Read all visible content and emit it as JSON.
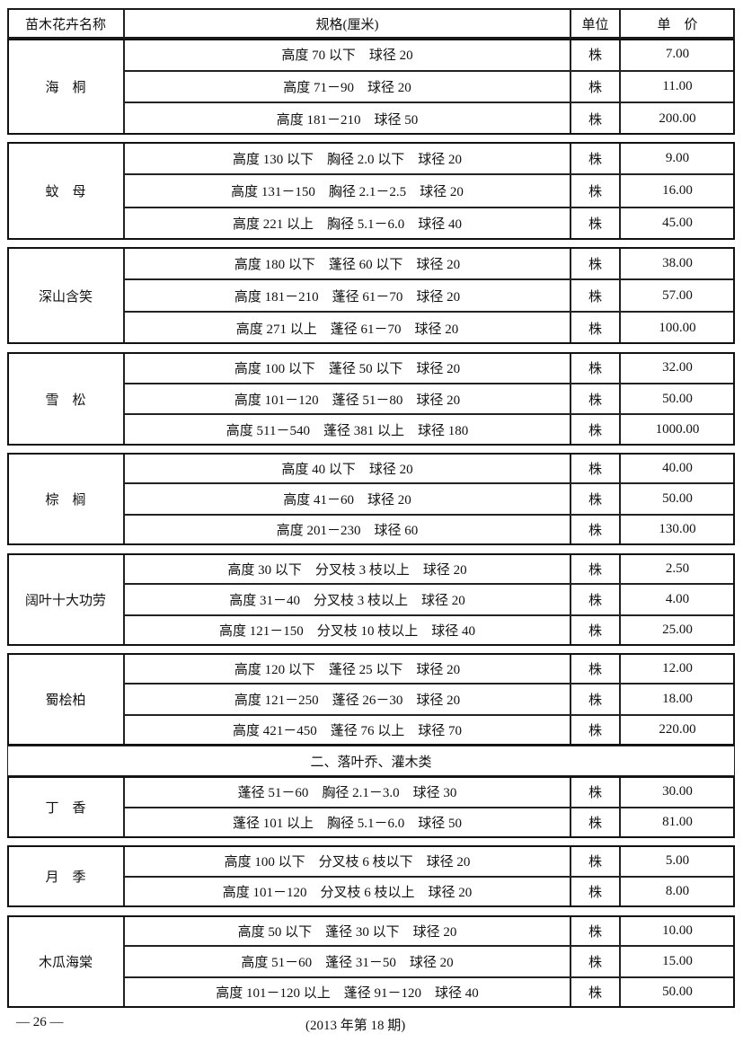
{
  "header": [
    "苗木花卉名称",
    "规格(厘米)",
    "单位",
    "单　价"
  ],
  "blocks": [
    {
      "name": "海　桐",
      "rows": [
        [
          "高度 70 以下　球径 20",
          "株",
          "7.00"
        ],
        [
          "高度 71－90　球径 20",
          "株",
          "11.00"
        ],
        [
          "高度 181－210　球径 50",
          "株",
          "200.00"
        ]
      ]
    },
    {
      "name": "蚊　母",
      "rows": [
        [
          "高度 130 以下　胸径 2.0 以下　球径 20",
          "株",
          "9.00"
        ],
        [
          "高度 131－150　胸径 2.1－2.5　球径 20",
          "株",
          "16.00"
        ],
        [
          "高度 221 以上　胸径 5.1－6.0　球径 40",
          "株",
          "45.00"
        ]
      ]
    },
    {
      "name": "深山含笑",
      "rows": [
        [
          "高度 180 以下　蓬径 60 以下　球径 20",
          "株",
          "38.00"
        ],
        [
          "高度 181－210　蓬径 61－70　球径 20",
          "株",
          "57.00"
        ],
        [
          "高度 271 以上　蓬径 61－70　球径 20",
          "株",
          "100.00"
        ]
      ]
    },
    {
      "name": "雪　松",
      "rows": [
        [
          "高度 100 以下　蓬径 50 以下　球径 20",
          "株",
          "32.00"
        ],
        [
          "高度 101－120　蓬径 51－80　球径 20",
          "株",
          "50.00"
        ],
        [
          "高度 511－540　蓬径 381 以上　球径 180",
          "株",
          "1000.00"
        ]
      ]
    },
    {
      "name": "棕　榈",
      "rows": [
        [
          "高度 40 以下　球径 20",
          "株",
          "40.00"
        ],
        [
          "高度 41－60　球径 20",
          "株",
          "50.00"
        ],
        [
          "高度 201－230　球径 60",
          "株",
          "130.00"
        ]
      ]
    },
    {
      "name": "阔叶十大功劳",
      "rows": [
        [
          "高度 30 以下　分叉枝 3 枝以上　球径 20",
          "株",
          "2.50"
        ],
        [
          "高度 31－40　分叉枝 3 枝以上　球径 20",
          "株",
          "4.00"
        ],
        [
          "高度 121－150　分叉枝 10 枝以上　球径 40",
          "株",
          "25.00"
        ]
      ]
    },
    {
      "name": "蜀桧柏",
      "rows": [
        [
          "高度 120 以下　蓬径 25 以下　球径 20",
          "株",
          "12.00"
        ],
        [
          "高度 121－250　蓬径 26－30　球径 20",
          "株",
          "18.00"
        ],
        [
          "高度 421－450　蓬径 76 以上　球径 70",
          "株",
          "220.00"
        ]
      ]
    },
    {
      "heading": "二、落叶乔、灌木类"
    },
    {
      "name": "丁　香",
      "rows": [
        [
          "蓬径 51－60　胸径 2.1－3.0　球径 30",
          "株",
          "30.00"
        ],
        [
          "蓬径 101 以上　胸径 5.1－6.0　球径 50",
          "株",
          "81.00"
        ]
      ]
    },
    {
      "name": "月　季",
      "rows": [
        [
          "高度 100 以下　分叉枝 6 枝以下　球径 20",
          "株",
          "5.00"
        ],
        [
          "高度 101－120　分叉枝 6 枝以上　球径 20",
          "株",
          "8.00"
        ]
      ]
    },
    {
      "name": "木瓜海棠",
      "rows": [
        [
          "高度 50 以下　蓬径 30 以下　球径 20",
          "株",
          "10.00"
        ],
        [
          "高度 51－60　蓬径 31－50　球径 20",
          "株",
          "15.00"
        ],
        [
          "高度 101－120 以上　蓬径 91－120　球径 40",
          "株",
          "50.00"
        ]
      ]
    }
  ],
  "footer": {
    "page": "— 26 —",
    "issue": "(2013 年第 18 期)"
  }
}
